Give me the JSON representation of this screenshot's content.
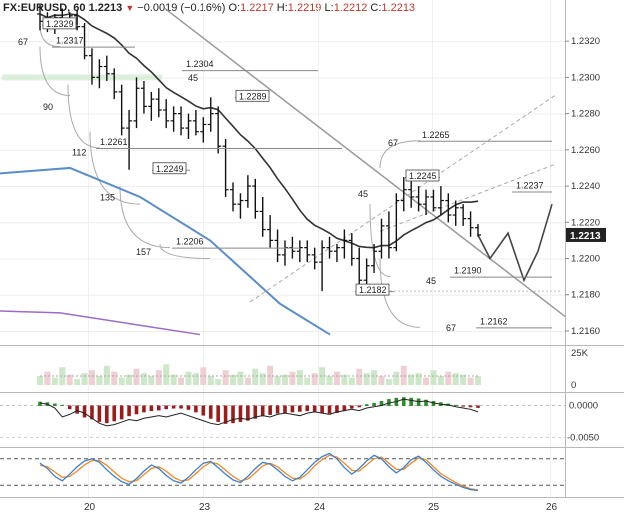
{
  "header": {
    "symbol": "FX:EURUSD, 60",
    "last": "1.2213",
    "change": "−0.0019 (−0.16%)",
    "o_label": "O:",
    "o_value": "1.2217",
    "h_label": "H:",
    "h_value": "1.2219",
    "l_label": "L:",
    "l_value": "1.2212",
    "c_label": "C:",
    "c_value": "1.2213"
  },
  "colors": {
    "up_bar": "#2e8b2e",
    "down_bar": "#9b1c1c",
    "ma_dark": "#333333",
    "ma_blue": "#5b8ec9",
    "ma_purple": "#9a6bc9",
    "stoch_blue": "#3b7fd1",
    "stoch_orange": "#f08a24",
    "last_price_bg": "#222222"
  },
  "chart_data": [
    {
      "type": "candlestick",
      "name": "price",
      "ylim": [
        1.2155,
        1.2335
      ],
      "y_ticks": [
        "1.2320",
        "1.2300",
        "1.2280",
        "1.2260",
        "1.2240",
        "1.2220",
        "1.2200",
        "1.2180",
        "1.2160"
      ],
      "x_ticks": [
        "20",
        "23",
        "24",
        "25",
        "26"
      ],
      "last_price_label": "1.2213",
      "levels": [
        {
          "price": 1.2329,
          "label": "1.2329"
        },
        {
          "price": 1.2317,
          "label": "1.2317"
        },
        {
          "price": 1.2304,
          "label": "1.2304"
        },
        {
          "price": 1.2289,
          "label": "1.2289"
        },
        {
          "price": 1.2265,
          "label": "1.2265"
        },
        {
          "price": 1.2261,
          "label": "1.2261"
        },
        {
          "price": 1.2249,
          "label": "1.2249"
        },
        {
          "price": 1.2245,
          "label": "1.2245"
        },
        {
          "price": 1.2237,
          "label": "1.2237"
        },
        {
          "price": 1.2206,
          "label": "1.2206"
        },
        {
          "price": 1.219,
          "label": "1.2190"
        },
        {
          "price": 1.2182,
          "label": "1.2182"
        },
        {
          "price": 1.2162,
          "label": "1.2162"
        }
      ],
      "gann_labels": [
        "67",
        "45",
        "90",
        "112",
        "135",
        "157",
        "67",
        "45",
        "45",
        "67"
      ],
      "candles": [
        [
          1.2335,
          1.234,
          1.2326,
          1.2331
        ],
        [
          1.2331,
          1.2336,
          1.2325,
          1.2327
        ],
        [
          1.2327,
          1.2335,
          1.2324,
          1.2333
        ],
        [
          1.2333,
          1.2338,
          1.2328,
          1.233
        ],
        [
          1.233,
          1.2336,
          1.2327,
          1.2334
        ],
        [
          1.2334,
          1.2337,
          1.2326,
          1.2328
        ],
        [
          1.2328,
          1.233,
          1.231,
          1.2312
        ],
        [
          1.2312,
          1.2316,
          1.2296,
          1.23
        ],
        [
          1.23,
          1.231,
          1.2294,
          1.2306
        ],
        [
          1.2306,
          1.2312,
          1.2298,
          1.2302
        ],
        [
          1.2302,
          1.2305,
          1.2288,
          1.2292
        ],
        [
          1.2292,
          1.2296,
          1.2268,
          1.2272
        ],
        [
          1.2272,
          1.2282,
          1.2249,
          1.2276
        ],
        [
          1.2276,
          1.23,
          1.2272,
          1.2294
        ],
        [
          1.2294,
          1.2298,
          1.228,
          1.2284
        ],
        [
          1.2284,
          1.2292,
          1.2276,
          1.2288
        ],
        [
          1.2288,
          1.2294,
          1.2278,
          1.2282
        ],
        [
          1.2282,
          1.2288,
          1.2272,
          1.2276
        ],
        [
          1.2276,
          1.2284,
          1.227,
          1.228
        ],
        [
          1.228,
          1.2284,
          1.2268,
          1.2272
        ],
        [
          1.2272,
          1.228,
          1.2266,
          1.2276
        ],
        [
          1.2276,
          1.2282,
          1.2268,
          1.227
        ],
        [
          1.227,
          1.2278,
          1.2264,
          1.2274
        ],
        [
          1.2274,
          1.2289,
          1.227,
          1.228
        ],
        [
          1.228,
          1.2284,
          1.2258,
          1.2262
        ],
        [
          1.2262,
          1.2266,
          1.2234,
          1.2238
        ],
        [
          1.2238,
          1.2242,
          1.2226,
          1.223
        ],
        [
          1.223,
          1.2236,
          1.2222,
          1.2232
        ],
        [
          1.2232,
          1.2246,
          1.2228,
          1.224
        ],
        [
          1.224,
          1.2244,
          1.2222,
          1.2226
        ],
        [
          1.2226,
          1.2234,
          1.2212,
          1.2216
        ],
        [
          1.2216,
          1.2224,
          1.2206,
          1.221
        ],
        [
          1.221,
          1.2216,
          1.2198,
          1.2202
        ],
        [
          1.2202,
          1.221,
          1.2196,
          1.2206
        ],
        [
          1.2206,
          1.2212,
          1.22,
          1.2204
        ],
        [
          1.2204,
          1.221,
          1.2198,
          1.2206
        ],
        [
          1.2206,
          1.221,
          1.2198,
          1.2202
        ],
        [
          1.2202,
          1.2206,
          1.2194,
          1.2198
        ],
        [
          1.2198,
          1.221,
          1.2182,
          1.2206
        ],
        [
          1.2206,
          1.2212,
          1.22,
          1.2204
        ],
        [
          1.2204,
          1.2208,
          1.2198,
          1.2206
        ],
        [
          1.2206,
          1.2216,
          1.22,
          1.221
        ],
        [
          1.221,
          1.2214,
          1.2196,
          1.22
        ],
        [
          1.22,
          1.2206,
          1.2182,
          1.2188
        ],
        [
          1.2188,
          1.22,
          1.218,
          1.2196
        ],
        [
          1.2196,
          1.2208,
          1.2192,
          1.2204
        ],
        [
          1.2204,
          1.2222,
          1.22,
          1.2218
        ],
        [
          1.2218,
          1.2226,
          1.22,
          1.2206
        ],
        [
          1.2206,
          1.2236,
          1.2204,
          1.2232
        ],
        [
          1.2232,
          1.2245,
          1.2226,
          1.2238
        ],
        [
          1.2238,
          1.2244,
          1.2228,
          1.2234
        ],
        [
          1.2234,
          1.224,
          1.2226,
          1.223
        ],
        [
          1.223,
          1.2238,
          1.2224,
          1.2234
        ],
        [
          1.2234,
          1.2238,
          1.2226,
          1.2228
        ],
        [
          1.2228,
          1.224,
          1.2224,
          1.2232
        ],
        [
          1.2232,
          1.2236,
          1.222,
          1.2224
        ],
        [
          1.2224,
          1.2232,
          1.2218,
          1.2228
        ],
        [
          1.2228,
          1.223,
          1.2218,
          1.2222
        ],
        [
          1.2222,
          1.2226,
          1.2212,
          1.2217
        ],
        [
          1.2217,
          1.2219,
          1.2212,
          1.2213
        ]
      ]
    },
    {
      "type": "bar",
      "name": "volume",
      "y_ticks": [
        "25K",
        "0"
      ],
      "values": [
        6,
        9,
        5,
        12,
        7,
        4,
        8,
        10,
        6,
        13,
        9,
        5,
        7,
        11,
        8,
        6,
        10,
        14,
        7,
        5,
        9,
        8,
        12,
        6,
        4,
        10,
        7,
        9,
        5,
        11,
        8,
        13,
        6,
        7,
        9,
        10,
        5,
        8,
        12,
        6,
        9,
        7,
        5,
        11,
        8,
        10,
        6,
        4,
        9,
        13,
        7,
        8,
        5,
        10,
        6,
        9,
        8,
        7,
        5,
        6
      ],
      "max": 25
    },
    {
      "type": "bar",
      "name": "macd",
      "y_ticks": [
        "0.0000",
        "-0.0050"
      ],
      "histogram": [
        0.0006,
        0.0005,
        0.0003,
        0.0001,
        -0.0005,
        -0.0012,
        -0.0018,
        -0.0021,
        -0.0025,
        -0.0027,
        -0.0024,
        -0.0021,
        -0.0016,
        -0.0013,
        -0.001,
        -0.0008,
        -0.0007,
        -0.0005,
        -0.0004,
        -0.0004,
        -0.0006,
        -0.001,
        -0.0015,
        -0.002,
        -0.0025,
        -0.0028,
        -0.0027,
        -0.0025,
        -0.0023,
        -0.002,
        -0.0016,
        -0.0014,
        -0.0012,
        -0.0011,
        -0.001,
        -0.0009,
        -0.0008,
        -0.0009,
        -0.0011,
        -0.0012,
        -0.0011,
        -0.0008,
        -0.0004,
        -0.0002,
        0.0002,
        0.0004,
        0.0007,
        0.001,
        0.0012,
        0.0013,
        0.0012,
        0.0011,
        0.0009,
        0.0007,
        0.0005,
        0.0003,
        0.0001,
        -0.0001,
        -0.0002,
        -0.0003
      ],
      "line": [
        0.0004,
        0.0002,
        -0.0004,
        -0.0018,
        -0.0014,
        -0.0008,
        -0.0012,
        -0.002,
        -0.0028,
        -0.0032,
        -0.003,
        -0.0026,
        -0.0022,
        -0.0024,
        -0.002,
        -0.0018,
        -0.0016,
        -0.0018,
        -0.0015,
        -0.0012,
        -0.0016,
        -0.002,
        -0.0024,
        -0.0028,
        -0.003,
        -0.0026,
        -0.0022,
        -0.002,
        -0.0022,
        -0.0018,
        -0.0016,
        -0.0018,
        -0.0014,
        -0.0012,
        -0.0014,
        -0.0016,
        -0.0012,
        -0.001,
        -0.0012,
        -0.0014,
        -0.001,
        -0.0008,
        -0.0006,
        -0.0008,
        -0.0004,
        -0.0002,
        0.0,
        0.0004,
        0.0006,
        0.001,
        0.0008,
        0.0006,
        0.0007,
        0.0004,
        0.0002,
        0.0001,
        -0.0002,
        -0.0004,
        -0.0006,
        -0.001
      ],
      "ylim": [
        -0.0062,
        0.0018
      ]
    },
    {
      "type": "line",
      "name": "stochastic",
      "ylim": [
        0,
        100
      ],
      "k": [
        70,
        58,
        40,
        30,
        45,
        62,
        75,
        80,
        72,
        55,
        40,
        28,
        22,
        35,
        52,
        66,
        58,
        42,
        30,
        25,
        38,
        55,
        70,
        74,
        60,
        45,
        32,
        26,
        40,
        58,
        72,
        68,
        55,
        40,
        30,
        38,
        55,
        72,
        85,
        92,
        80,
        60,
        45,
        58,
        75,
        88,
        80,
        62,
        48,
        60,
        78,
        86,
        72,
        55,
        40,
        30,
        22,
        15,
        10,
        8
      ],
      "d": [
        65,
        62,
        50,
        38,
        40,
        52,
        66,
        76,
        76,
        65,
        50,
        36,
        28,
        30,
        44,
        58,
        62,
        52,
        38,
        30,
        32,
        46,
        62,
        72,
        68,
        54,
        40,
        30,
        34,
        48,
        64,
        70,
        62,
        48,
        36,
        34,
        46,
        64,
        78,
        88,
        84,
        70,
        54,
        52,
        66,
        80,
        84,
        70,
        56,
        56,
        70,
        82,
        78,
        62,
        46,
        36,
        26,
        18,
        12,
        9
      ]
    }
  ],
  "forecast": [
    1.2213,
    1.22,
    1.2214,
    1.2188,
    1.2204,
    1.223
  ]
}
